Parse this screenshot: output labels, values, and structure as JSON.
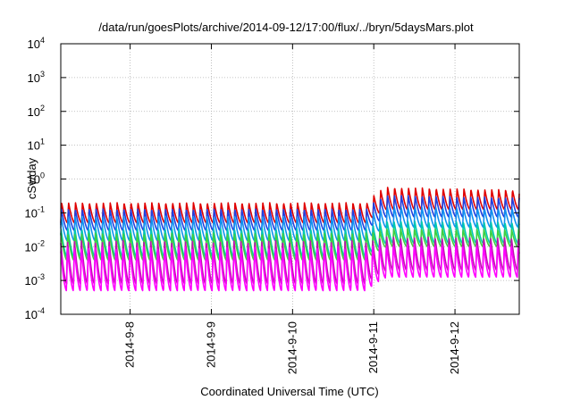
{
  "chart_data": {
    "type": "line",
    "title": "/data/run/goesPlots/archive/2014-09-12/17:00/flux/../bryn/5daysMars.plot",
    "xlabel": "Coordinated Universal Time (UTC)",
    "ylabel": "cSv/day",
    "yscale": "log",
    "ylim": [
      0.0001,
      10000
    ],
    "xlim": [
      "2014-09-07 03:30",
      "2014-09-12 19:00"
    ],
    "grid": true,
    "x_ticks": [
      "2014-9-8",
      "2014-9-9",
      "2014-9-10",
      "2014-9-11",
      "2014-9-12"
    ],
    "y_ticks": [
      {
        "base": "10",
        "exp": "-4"
      },
      {
        "base": "10",
        "exp": "-3"
      },
      {
        "base": "10",
        "exp": "-2"
      },
      {
        "base": "10",
        "exp": "-1"
      },
      {
        "base": "10",
        "exp": "0"
      },
      {
        "base": "10",
        "exp": "1"
      },
      {
        "base": "10",
        "exp": "2"
      },
      {
        "base": "10",
        "exp": "3"
      },
      {
        "base": "10",
        "exp": "4"
      }
    ],
    "orbit_period_hours": 2.05,
    "event_start": "2014-09-10 22:00",
    "series": [
      {
        "color": "#e00000",
        "peak_quiet": 0.2,
        "trough_quiet": 0.05,
        "peak_event": 0.6
      },
      {
        "color": "#2040e0",
        "peak_quiet": 0.13,
        "trough_quiet": 0.03,
        "peak_event": 0.35
      },
      {
        "color": "#1090f0",
        "peak_quiet": 0.08,
        "trough_quiet": 0.015,
        "peak_event": 0.16
      },
      {
        "color": "#00c8b0",
        "peak_quiet": 0.035,
        "trough_quiet": 0.005,
        "peak_event": 0.06
      },
      {
        "color": "#40d040",
        "peak_quiet": 0.025,
        "trough_quiet": 0.004,
        "peak_event": 0.035
      },
      {
        "color": "#c010b0",
        "peak_quiet": 0.015,
        "trough_quiet": 0.0008,
        "peak_event": 0.02
      },
      {
        "color": "#ff00ff",
        "peak_quiet": 0.01,
        "trough_quiet": 0.0005,
        "peak_event": 0.012
      }
    ]
  }
}
